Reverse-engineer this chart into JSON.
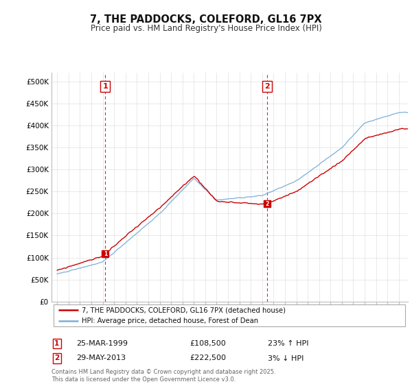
{
  "title": "7, THE PADDOCKS, COLEFORD, GL16 7PX",
  "subtitle": "Price paid vs. HM Land Registry's House Price Index (HPI)",
  "legend_line1": "7, THE PADDOCKS, COLEFORD, GL16 7PX (detached house)",
  "legend_line2": "HPI: Average price, detached house, Forest of Dean",
  "transaction1_date": 1999.23,
  "transaction1_label": "25-MAR-1999",
  "transaction1_price": "£108,500",
  "transaction1_hpi": "23% ↑ HPI",
  "transaction2_date": 2013.41,
  "transaction2_label": "29-MAY-2013",
  "transaction2_price": "£222,500",
  "transaction2_hpi": "3% ↓ HPI",
  "footer": "Contains HM Land Registry data © Crown copyright and database right 2025.\nThis data is licensed under the Open Government Licence v3.0.",
  "red_color": "#cc0000",
  "blue_color": "#7aaed6",
  "xmin": 1994.5,
  "xmax": 2025.8,
  "ymin": 0,
  "ymax": 520000
}
